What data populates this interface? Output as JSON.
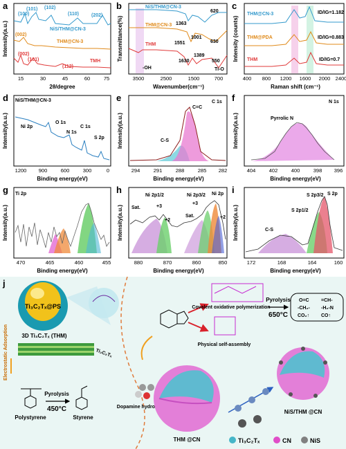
{
  "panels": [
    {
      "id": "a",
      "letter": "a",
      "xlabel": "2θ/degree",
      "ylabel": "Intensity(a.u.)",
      "xticks": [
        "15",
        "30",
        "45",
        "60",
        "75"
      ],
      "series": [
        {
          "name": "NiS/THM@CN-3",
          "color": "#3399cc"
        },
        {
          "name": "THM@CN-3",
          "color": "#e08a1a"
        },
        {
          "name": "TMH",
          "color": "#e03a3a"
        }
      ],
      "annotations": [
        "(101)",
        "(102)",
        "(100)",
        "(110)",
        "(202)",
        "(002)",
        "(002)",
        "(101)",
        "(112)"
      ]
    },
    {
      "id": "b",
      "letter": "b",
      "xlabel": "Wavenumber(cm⁻¹)",
      "ylabel": "Transmittance(%)",
      "xticks": [
        "3500",
        "2500",
        "1500",
        "700"
      ],
      "series": [
        {
          "name": "NiS/THM@CN-3",
          "color": "#3399cc"
        },
        {
          "name": "THM@CN-3",
          "color": "#e08a1a"
        },
        {
          "name": "THM",
          "color": "#e03a3a"
        }
      ],
      "annotations": [
        "620",
        "1363",
        "1001",
        "630",
        "1551",
        "1630",
        "1389",
        "550",
        "-OH",
        "Ti-O"
      ]
    },
    {
      "id": "c",
      "letter": "c",
      "xlabel": "Raman shift (cm⁻¹)",
      "ylabel": "Intensity (counts)",
      "xticks": [
        "400",
        "800",
        "1200",
        "1600",
        "2000",
        "2400"
      ],
      "series": [
        {
          "name": "THM@CN-3",
          "color": "#3399cc"
        },
        {
          "name": "THM@PDA",
          "color": "#e08a1a"
        },
        {
          "name": "THM",
          "color": "#e03a3a"
        }
      ],
      "annotations": [
        "ID/IG=1.182",
        "ID/IG=0.883",
        "ID/IG=0.7"
      ]
    },
    {
      "id": "d",
      "letter": "d",
      "title": "NiS/THM@CN-3",
      "xlabel": "Binding energy(eV)",
      "ylabel": "Intensity(a.u.)",
      "xticks": [
        "1200",
        "900",
        "600",
        "300",
        "0"
      ],
      "annotations": [
        "Ni 2p",
        "O 1s",
        "N 1s",
        "C 1s",
        "S 2p"
      ]
    },
    {
      "id": "e",
      "letter": "e",
      "title": "C 1s",
      "xlabel": "Binding energy(eV)",
      "ylabel": "Intensity(a.u.)",
      "xticks": [
        "294",
        "291",
        "288",
        "285",
        "282"
      ],
      "annotations": [
        "C-S",
        "C=C"
      ]
    },
    {
      "id": "f",
      "letter": "f",
      "title": "N 1s",
      "xlabel": "Binding energy(eV)",
      "ylabel": "Intensity(a.u.)",
      "xticks": [
        "404",
        "402",
        "400",
        "398",
        "396"
      ],
      "annotations": [
        "Pyrrolic N"
      ]
    },
    {
      "id": "g",
      "letter": "g",
      "title": "Ti 2p",
      "xlabel": "Binding energy(eV)",
      "ylabel": "Intensity(a.u.)",
      "xticks": [
        "470",
        "465",
        "460",
        "455"
      ],
      "annotations": []
    },
    {
      "id": "h",
      "letter": "h",
      "title": "Ni 2p",
      "xlabel": "Binding energy(eV)",
      "ylabel": "Intensity(a.u.)",
      "xticks": [
        "880",
        "870",
        "860",
        "850"
      ],
      "annotations": [
        "Ni 2p1/2",
        "Ni 2p3/2",
        "Sat.",
        "+3",
        "+2",
        "Sat.",
        "+3",
        "+2"
      ]
    },
    {
      "id": "i",
      "letter": "i",
      "title": "S 2p",
      "xlabel": "Binding energy(eV)",
      "ylabel": "Intensity(a.u.)",
      "xticks": [
        "172",
        "168",
        "164",
        "160"
      ],
      "annotations": [
        "C-S",
        "S 2p3/2",
        "S 2p1/2"
      ]
    }
  ],
  "scheme": {
    "letter": "j",
    "labels": {
      "ps_sphere": "Ti₃C₂Tₓ@PS",
      "thm": "3D Ti₃C₂Tₓ (THM)",
      "tx": "Ti₃C₂Tₓ",
      "electrostatic": "Electrostatic Adsorption",
      "polystyrene": "Polystyrene",
      "pyrolysis1": "Pyrolysis",
      "temp1": "450°C",
      "styrene": "Styrene",
      "dopamine": "Dopamine hydrochloride",
      "covalent": "Covalent oxidative polymerization",
      "selfassembly": "Physical self-assembly",
      "pyrolysis2": "Pyrolysis",
      "temp2": "650°C",
      "gases": [
        "O=C",
        "=CH-",
        "-CH₂-",
        "-H₂-N",
        "CO₂↑",
        "CO↑"
      ],
      "thmcn": "THM @CN",
      "nisthmcn": "NiS/THM @CN"
    },
    "legend": [
      {
        "label": "Ti₃C₂Tₓ",
        "color": "#46b6c8"
      },
      {
        "label": "CN",
        "color": "#e04ec8"
      },
      {
        "label": "NiS",
        "color": "#808080"
      }
    ]
  }
}
